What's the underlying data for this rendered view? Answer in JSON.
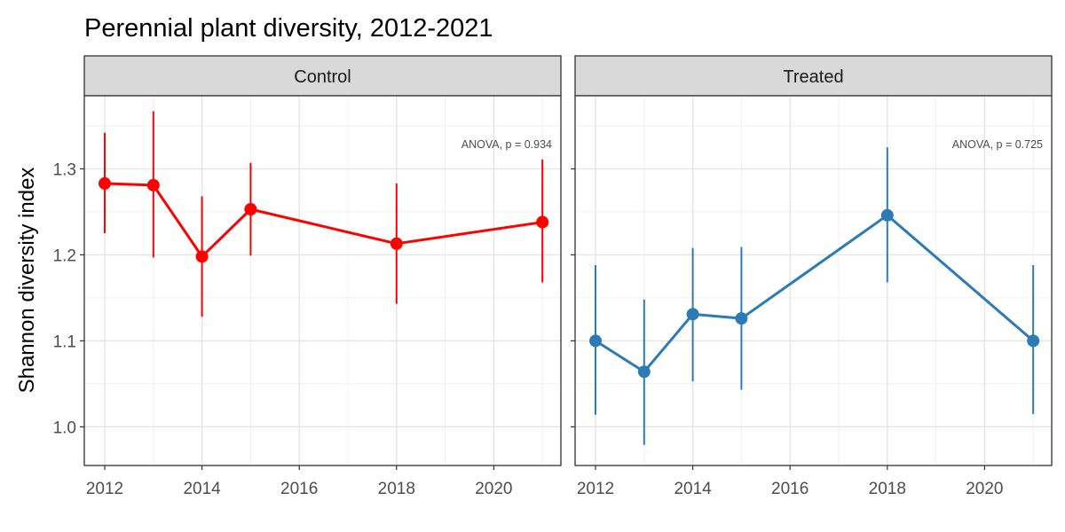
{
  "chart_data": {
    "type": "line",
    "title": "Perennial plant diversity, 2012-2021",
    "ylabel": "Shannon diversity index",
    "xlabel": "",
    "xlim": [
      2011.58,
      2021.38
    ],
    "ylim": [
      0.955,
      1.385
    ],
    "x_ticks": [
      2012,
      2014,
      2016,
      2018,
      2020
    ],
    "y_ticks": [
      1.0,
      1.1,
      1.2,
      1.3
    ],
    "grid": true,
    "panels": [
      {
        "name": "Control",
        "color": "#ff0000",
        "annotation": "ANOVA, p = 0.934",
        "x": [
          2012,
          2013,
          2014,
          2015,
          2018,
          2021
        ],
        "y": [
          1.283,
          1.281,
          1.198,
          1.253,
          1.213,
          1.238
        ],
        "ymin": [
          1.225,
          1.197,
          1.128,
          1.199,
          1.143,
          1.168
        ],
        "ymax": [
          1.342,
          1.367,
          1.268,
          1.307,
          1.283,
          1.311
        ]
      },
      {
        "name": "Treated",
        "color": "#2c7bb6",
        "annotation": "ANOVA, p = 0.725",
        "x": [
          2012,
          2013,
          2014,
          2015,
          2018,
          2021
        ],
        "y": [
          1.1,
          1.064,
          1.131,
          1.126,
          1.246,
          1.1
        ],
        "ymin": [
          1.014,
          0.979,
          1.053,
          1.043,
          1.168,
          1.015
        ],
        "ymax": [
          1.188,
          1.148,
          1.208,
          1.209,
          1.325,
          1.188
        ]
      }
    ]
  }
}
